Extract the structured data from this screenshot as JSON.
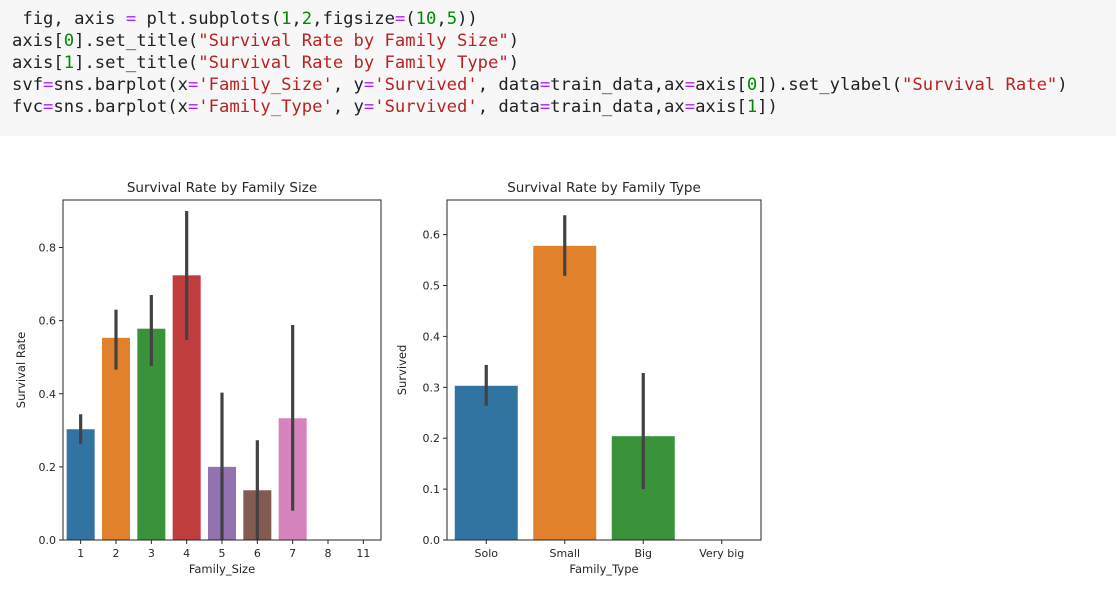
{
  "code": {
    "lines": [
      [
        {
          "t": " fig, axis ",
          "c": ""
        },
        {
          "t": "=",
          "c": "op"
        },
        {
          "t": " plt.subplots(",
          "c": ""
        },
        {
          "t": "1",
          "c": "num"
        },
        {
          "t": ",",
          "c": ""
        },
        {
          "t": "2",
          "c": "num"
        },
        {
          "t": ",figsize",
          "c": ""
        },
        {
          "t": "=",
          "c": "op"
        },
        {
          "t": "(",
          "c": ""
        },
        {
          "t": "10",
          "c": "num"
        },
        {
          "t": ",",
          "c": ""
        },
        {
          "t": "5",
          "c": "num"
        },
        {
          "t": "))",
          "c": ""
        }
      ],
      [
        {
          "t": "axis[",
          "c": ""
        },
        {
          "t": "0",
          "c": "num"
        },
        {
          "t": "].set_title(",
          "c": ""
        },
        {
          "t": "\"Survival Rate by Family Size\"",
          "c": "str"
        },
        {
          "t": ")",
          "c": ""
        }
      ],
      [
        {
          "t": "axis[",
          "c": ""
        },
        {
          "t": "1",
          "c": "num"
        },
        {
          "t": "].set_title(",
          "c": ""
        },
        {
          "t": "\"Survival Rate by Family Type\"",
          "c": "str"
        },
        {
          "t": ")",
          "c": ""
        }
      ],
      [
        {
          "t": "svf",
          "c": ""
        },
        {
          "t": "=",
          "c": "op"
        },
        {
          "t": "sns.barplot(x",
          "c": ""
        },
        {
          "t": "=",
          "c": "op"
        },
        {
          "t": "'Family_Size'",
          "c": "str"
        },
        {
          "t": ", y",
          "c": ""
        },
        {
          "t": "=",
          "c": "op"
        },
        {
          "t": "'Survived'",
          "c": "str"
        },
        {
          "t": ", data",
          "c": ""
        },
        {
          "t": "=",
          "c": "op"
        },
        {
          "t": "train_data,ax",
          "c": ""
        },
        {
          "t": "=",
          "c": "op"
        },
        {
          "t": "axis[",
          "c": ""
        },
        {
          "t": "0",
          "c": "num"
        },
        {
          "t": "]).set_ylabel(",
          "c": ""
        },
        {
          "t": "\"Survival Rate\"",
          "c": "str"
        },
        {
          "t": ")",
          "c": ""
        }
      ],
      [
        {
          "t": "fvc",
          "c": ""
        },
        {
          "t": "=",
          "c": "op"
        },
        {
          "t": "sns.barplot(x",
          "c": ""
        },
        {
          "t": "=",
          "c": "op"
        },
        {
          "t": "'Family_Type'",
          "c": "str"
        },
        {
          "t": ", y",
          "c": ""
        },
        {
          "t": "=",
          "c": "op"
        },
        {
          "t": "'Survived'",
          "c": "str"
        },
        {
          "t": ", data",
          "c": ""
        },
        {
          "t": "=",
          "c": "op"
        },
        {
          "t": "train_data,ax",
          "c": ""
        },
        {
          "t": "=",
          "c": "op"
        },
        {
          "t": "axis[",
          "c": ""
        },
        {
          "t": "1",
          "c": "num"
        },
        {
          "t": "])",
          "c": ""
        }
      ]
    ]
  },
  "colors": {
    "code_bg": "#f7f7f7",
    "error_bar": "#424242",
    "axis": "#262626"
  },
  "chart_data": [
    {
      "type": "bar",
      "title": "Survival Rate by Family Size",
      "xlabel": "Family_Size",
      "ylabel": "Survival Rate",
      "categories": [
        "1",
        "2",
        "3",
        "4",
        "5",
        "6",
        "7",
        "8",
        "11"
      ],
      "values": [
        0.303,
        0.553,
        0.578,
        0.724,
        0.2,
        0.136,
        0.333,
        0,
        0
      ],
      "ci_low": [
        0.262,
        0.466,
        0.476,
        0.547,
        0,
        0,
        0.08,
        0,
        0
      ],
      "ci_high": [
        0.344,
        0.63,
        0.67,
        0.9,
        0.403,
        0.273,
        0.588,
        0,
        0
      ],
      "colors": [
        "#3274a1",
        "#e1812c",
        "#3a923a",
        "#c03d3e",
        "#9372b2",
        "#845b53",
        "#d684bd",
        "#7f7f7f",
        "#a9aa35"
      ],
      "ylim": [
        0,
        0.93
      ],
      "yticks": [
        0.0,
        0.2,
        0.4,
        0.6,
        0.8
      ],
      "ytick_labels": [
        "0.0",
        "0.2",
        "0.4",
        "0.6",
        "0.8"
      ],
      "grid": false
    },
    {
      "type": "bar",
      "title": "Survival Rate by Family Type",
      "xlabel": "Family_Type",
      "ylabel": "Survived",
      "categories": [
        "Solo",
        "Small",
        "Big",
        "Very big"
      ],
      "values": [
        0.303,
        0.578,
        0.204,
        0
      ],
      "ci_low": [
        0.264,
        0.519,
        0.1,
        0
      ],
      "ci_high": [
        0.344,
        0.638,
        0.328,
        0
      ],
      "colors": [
        "#3274a1",
        "#e1812c",
        "#3a923a",
        "#c03d3e"
      ],
      "ylim": [
        0,
        0.668
      ],
      "yticks": [
        0.0,
        0.1,
        0.2,
        0.3,
        0.4,
        0.5,
        0.6
      ],
      "ytick_labels": [
        "0.0",
        "0.1",
        "0.2",
        "0.3",
        "0.4",
        "0.5",
        "0.6"
      ],
      "grid": false
    }
  ]
}
